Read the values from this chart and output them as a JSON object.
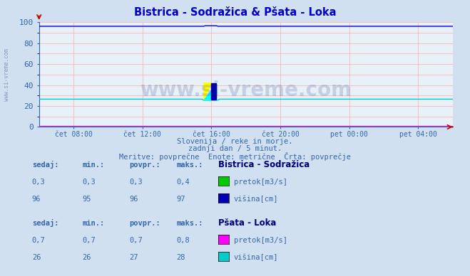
{
  "title": "Bistrica - Sodražica & Pšata - Loka",
  "title_color": "#0000cc",
  "bg_color": "#d0e0f0",
  "plot_bg_color": "#e8f0f8",
  "grid_color": "#ffaaaa",
  "ylim": [
    0,
    100
  ],
  "yticks": [
    0,
    20,
    40,
    60,
    80,
    100
  ],
  "xtick_labels": [
    "čet 08:00",
    "čet 12:00",
    "čet 16:00",
    "čet 20:00",
    "pet 00:00",
    "pet 04:00"
  ],
  "watermark": "www.si-vreme.com",
  "watermark_color": "#1a3a8a",
  "watermark_alpha": 0.18,
  "subtitle1": "Slovenija / reke in morje.",
  "subtitle2": "zadnji dan / 5 minut.",
  "subtitle3": "Meritve: povprečne  Enote: metrične  Črta: povprečje",
  "subtitle_color": "#3366aa",
  "line_bistrica_visina_color": "#0000cc",
  "line_bistrica_pretok_color": "#00cc00",
  "line_psata_visina_color": "#00cccc",
  "line_psata_pretok_color": "#ff00ff",
  "legend_bistrica_pretok_color": "#00cc00",
  "legend_bistrica_visina_color": "#0000bb",
  "legend_psata_pretok_color": "#ff00ff",
  "legend_psata_visina_color": "#00cccc",
  "info_color": "#3366aa",
  "label_color": "#3366aa",
  "axis_color": "#3366aa",
  "border_color": "#3366aa"
}
